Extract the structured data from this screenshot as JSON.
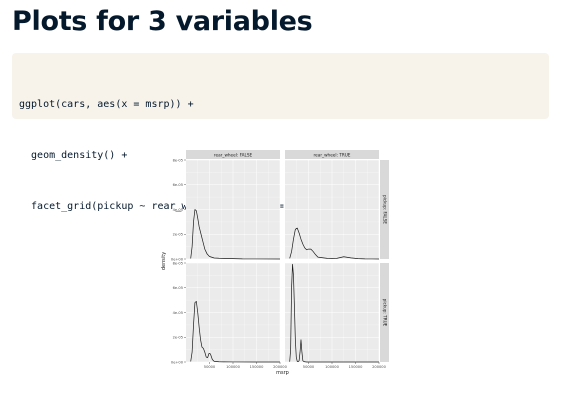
{
  "slide": {
    "title": "Plots for 3 variables",
    "code_lines": [
      "ggplot(cars, aes(x = msrp)) +",
      "  geom_density() +",
      "  facet_grid(pickup ~ rear_wheel, labeller = label_both)"
    ]
  },
  "chart_data": {
    "type": "line",
    "xlabel": "msrp",
    "ylabel": "density",
    "xlim": [
      0,
      200000
    ],
    "ylim": [
      0,
      8e-05
    ],
    "x_ticks": [
      50000,
      100000,
      150000,
      200000
    ],
    "x_tick_labels": [
      "50000",
      "100000",
      "150000",
      "200000"
    ],
    "y_ticks": [
      0,
      2e-05,
      4e-05,
      6e-05,
      8e-05
    ],
    "y_tick_labels": [
      "0e+00",
      "2e-05",
      "4e-05",
      "6e-05",
      "8e-05"
    ],
    "column_strips": [
      "rear_wheel: FALSE",
      "rear_wheel: TRUE"
    ],
    "row_strips": [
      "pickup: FALSE",
      "pickup: TRUE"
    ],
    "grid": true,
    "panels": [
      {
        "row": 0,
        "col": 0,
        "x": [
          10000,
          13000,
          16000,
          19000,
          22000,
          25000,
          28000,
          32000,
          36000,
          40000,
          45000,
          50000,
          60000,
          70000,
          80000,
          100000,
          120000,
          150000,
          200000
        ],
        "y": [
          4e-07,
          1e-05,
          3e-05,
          4e-05,
          3.9e-05,
          3.3e-05,
          2.6e-05,
          2e-05,
          1.4e-05,
          8e-06,
          4e-06,
          2e-06,
          8e-07,
          6e-07,
          5e-07,
          3e-07,
          1e-07,
          5e-08,
          0
        ]
      },
      {
        "row": 0,
        "col": 1,
        "x": [
          10000,
          14000,
          18000,
          22000,
          26000,
          30000,
          34000,
          38000,
          42000,
          46000,
          50000,
          55000,
          60000,
          65000,
          70000,
          80000,
          90000,
          100000,
          110000,
          125000,
          140000,
          155000,
          170000,
          185000,
          200000
        ],
        "y": [
          5e-07,
          6e-06,
          1.6e-05,
          2.4e-05,
          2.5e-05,
          2.1e-05,
          1.6e-05,
          1.2e-05,
          9e-06,
          7.5e-06,
          8e-06,
          8e-06,
          6e-06,
          3.5e-06,
          1.5e-06,
          1e-06,
          5e-07,
          4e-07,
          5e-07,
          1.8e-06,
          9e-07,
          3e-07,
          1e-07,
          5e-08,
          0
        ]
      },
      {
        "row": 1,
        "col": 0,
        "x": [
          10000,
          13000,
          16000,
          19000,
          22000,
          25000,
          28000,
          31000,
          34000,
          37000,
          40000,
          43000,
          46000,
          49000,
          52000,
          56000,
          60000,
          70000,
          80000,
          100000,
          150000,
          200000
        ],
        "y": [
          4e-07,
          8e-06,
          3e-05,
          4.8e-05,
          4.9e-05,
          4e-05,
          2.8e-05,
          1.8e-05,
          1.2e-05,
          1.1e-05,
          8e-06,
          4e-06,
          3.5e-06,
          7e-06,
          6.5e-06,
          2e-06,
          5e-07,
          2e-07,
          1e-07,
          5e-08,
          0,
          0
        ]
      },
      {
        "row": 1,
        "col": 1,
        "x": [
          10000,
          12000,
          14000,
          16000,
          18000,
          20000,
          22000,
          24000,
          26000,
          28000,
          30000,
          32000,
          34000,
          36000,
          38000,
          40000,
          42000,
          44000,
          46000,
          50000,
          60000,
          100000,
          150000,
          200000
        ],
        "y": [
          2e-07,
          1e-05,
          6e-05,
          7.9e-05,
          7e-05,
          4.5e-05,
          1.8e-05,
          4e-06,
          5e-07,
          3e-07,
          1e-06,
          8e-06,
          1.8e-05,
          8e-06,
          1e-06,
          4e-07,
          2e-07,
          1e-07,
          0,
          0,
          0,
          0,
          0,
          0
        ]
      }
    ]
  },
  "colors": {
    "panel_bg": "#ebebeb",
    "grid": "#ffffff",
    "strip_bg": "#d9d9d9",
    "line": "#1a1a1a",
    "text": "#4d4d4d",
    "title": "#05192d",
    "code_bg": "#f7f3eb"
  }
}
